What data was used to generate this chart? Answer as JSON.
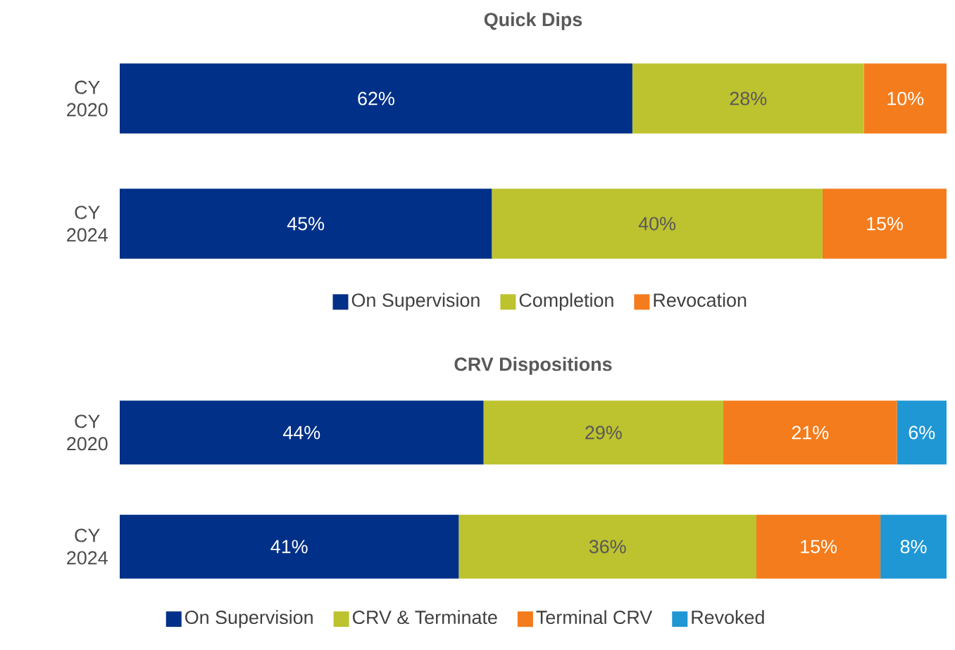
{
  "chart_data": [
    {
      "type": "bar",
      "orientation": "horizontal",
      "stacked": true,
      "title": "Quick Dips",
      "categories": [
        "CY 2020",
        "CY 2024"
      ],
      "legend": "bottom",
      "tick_labels": "y",
      "series": [
        {
          "name": "On Supervision",
          "color": "#003087",
          "values": [
            62,
            45
          ],
          "value_labels": [
            "62%",
            "45%"
          ]
        },
        {
          "name": "Completion",
          "color": "#bdc22f",
          "values": [
            28,
            40
          ],
          "value_labels": [
            "28%",
            "40%"
          ]
        },
        {
          "name": "Revocation",
          "color": "#f47c1c",
          "values": [
            10,
            15
          ],
          "value_labels": [
            "10%",
            "15%"
          ]
        }
      ]
    },
    {
      "type": "bar",
      "orientation": "horizontal",
      "stacked": true,
      "title": "CRV Dispositions",
      "categories": [
        "CY 2020",
        "CY 2024"
      ],
      "legend": "bottom",
      "tick_labels": "y",
      "series": [
        {
          "name": "On Supervision",
          "color": "#003087",
          "values": [
            44,
            41
          ],
          "value_labels": [
            "44%",
            "41%"
          ]
        },
        {
          "name": "CRV & Terminate",
          "color": "#bdc22f",
          "values": [
            29,
            36
          ],
          "value_labels": [
            "29%",
            "36%"
          ]
        },
        {
          "name": "Terminal CRV",
          "color": "#f47c1c",
          "values": [
            21,
            15
          ],
          "value_labels": [
            "21%",
            "15%"
          ]
        },
        {
          "name": "Revoked",
          "color": "#1f97d4",
          "values": [
            6,
            8
          ],
          "value_labels": [
            "6%",
            "8%"
          ]
        }
      ]
    }
  ]
}
